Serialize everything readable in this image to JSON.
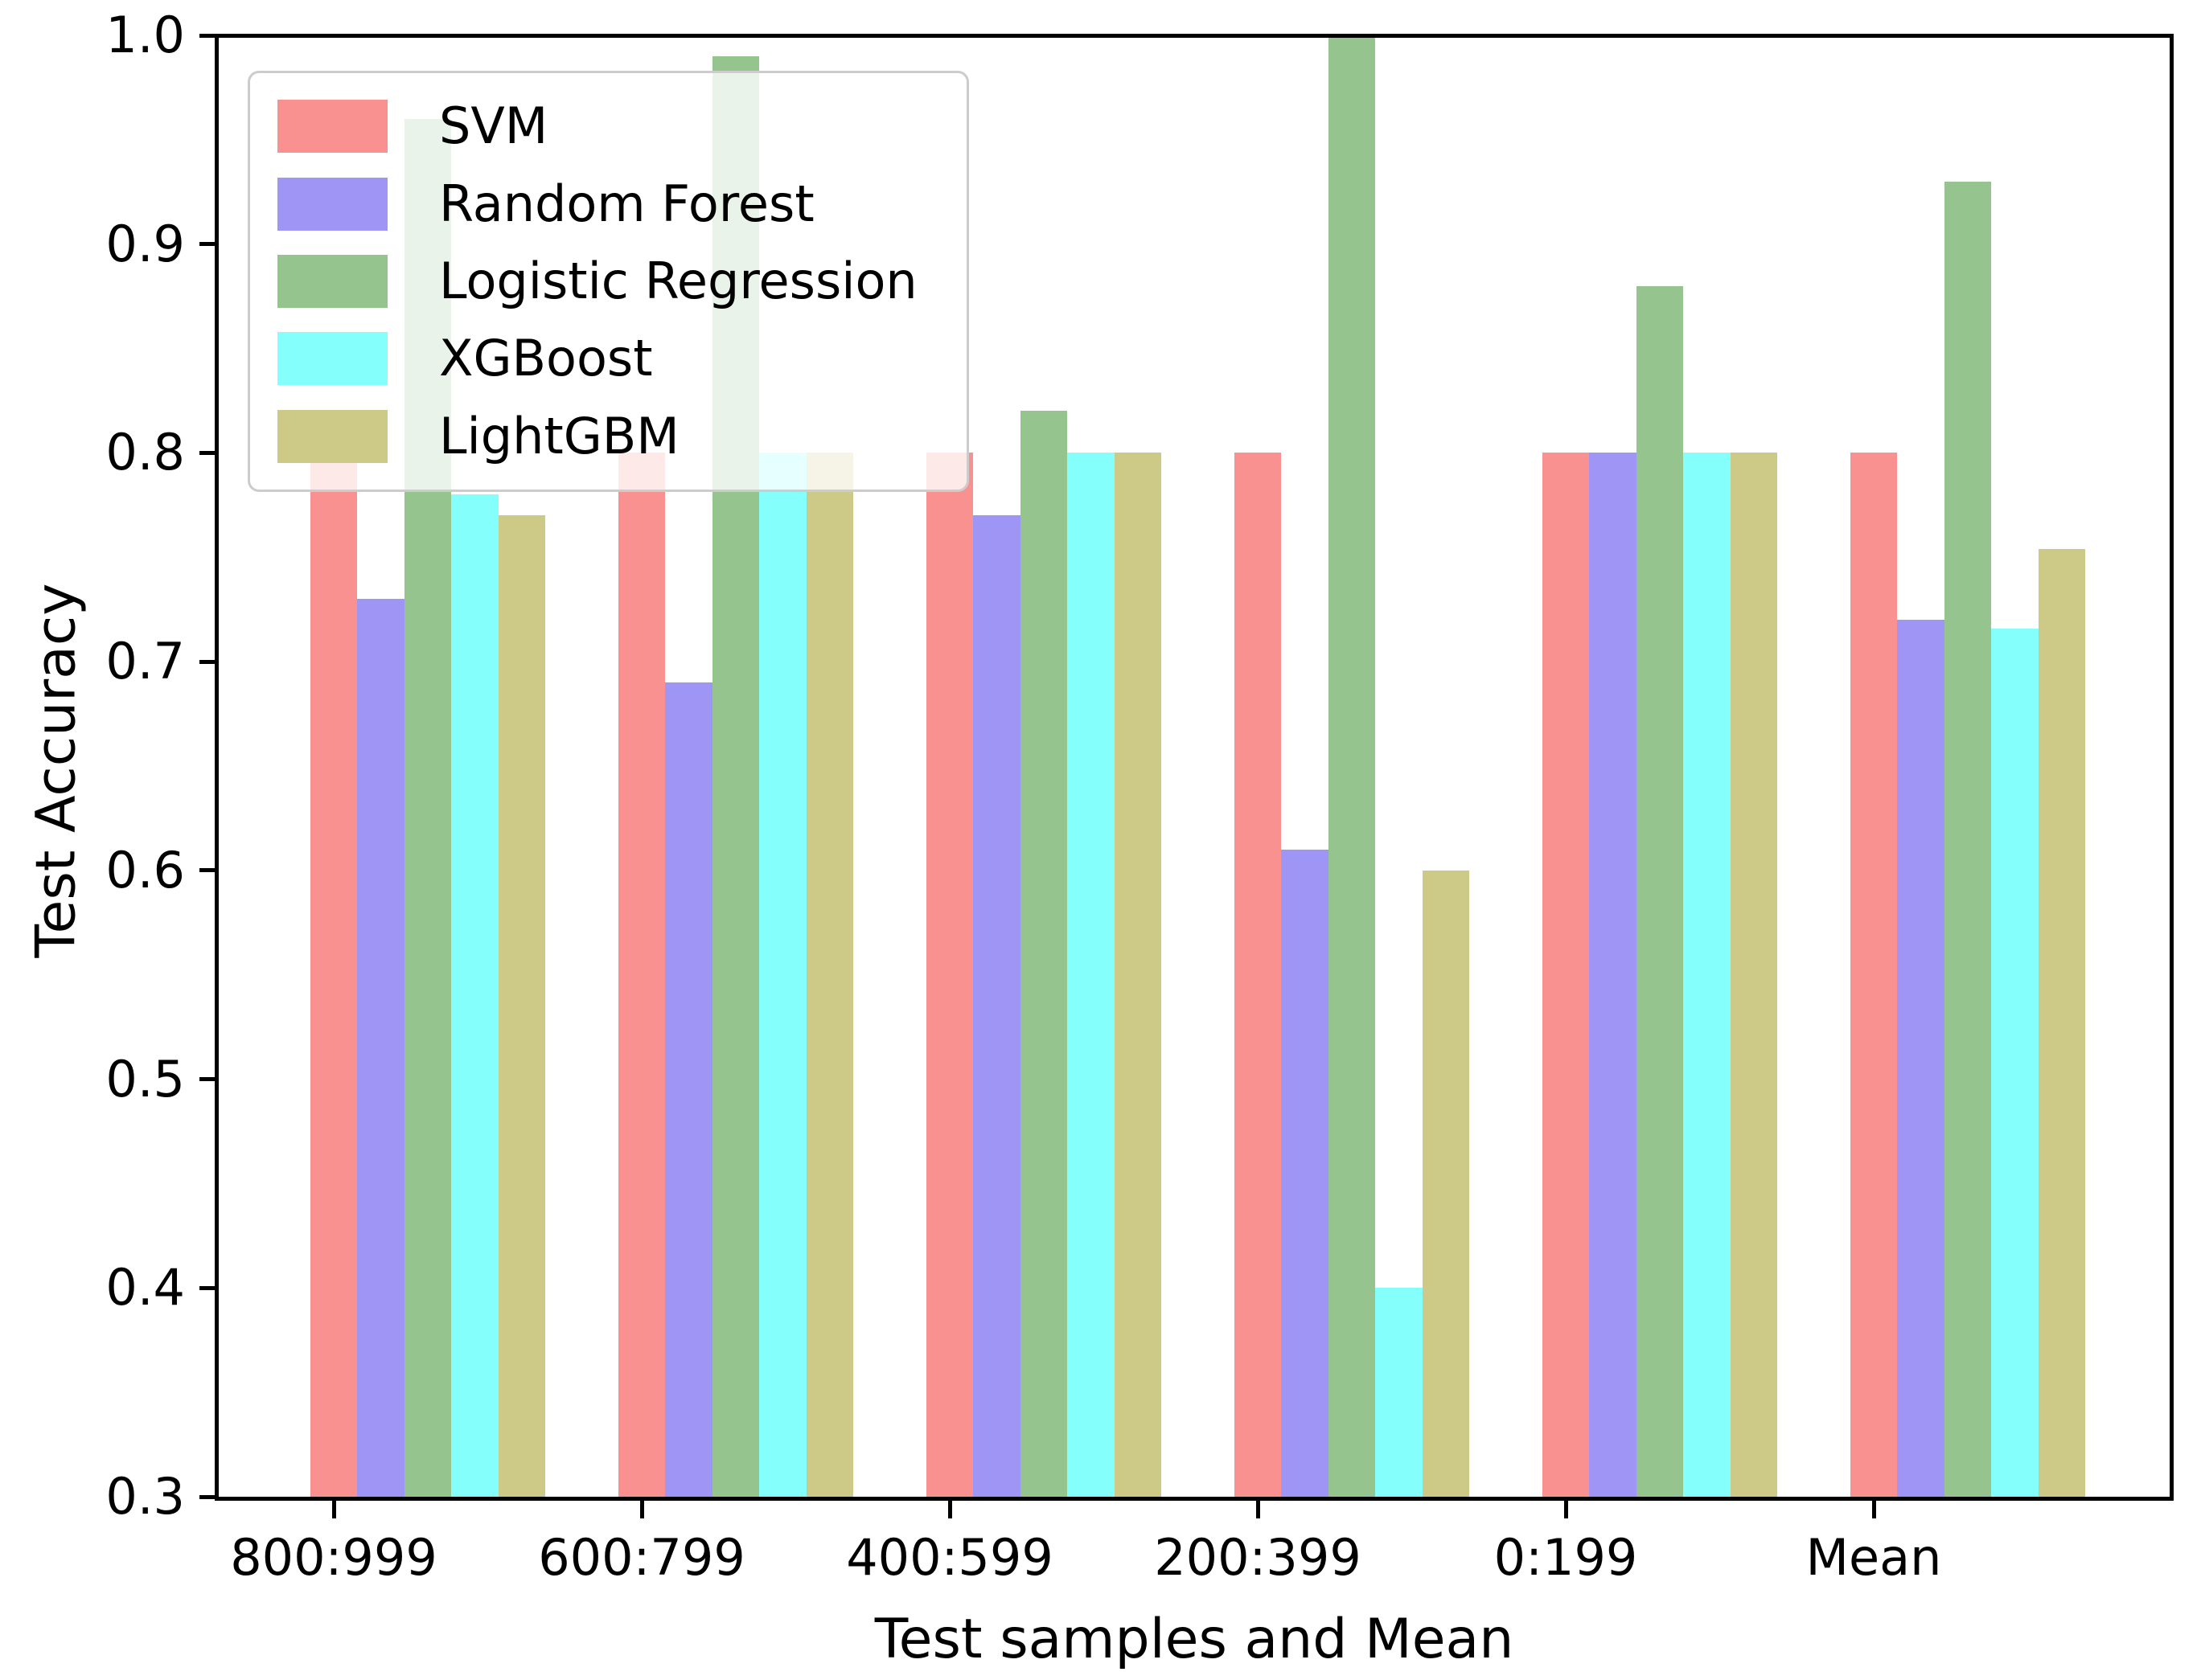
{
  "chart_data": {
    "type": "bar",
    "title": "",
    "xlabel": "Test samples and Mean",
    "ylabel": "Test Accuracy",
    "categories": [
      "800:999",
      "600:799",
      "400:599",
      "200:399",
      "0:199",
      "Mean"
    ],
    "series": [
      {
        "name": "SVM",
        "color": "#FA9191",
        "values": [
          0.8,
          0.8,
          0.8,
          0.8,
          0.8,
          0.8
        ]
      },
      {
        "name": "Random Forest",
        "color": "#9E95F4",
        "values": [
          0.73,
          0.69,
          0.77,
          0.61,
          0.8,
          0.72
        ]
      },
      {
        "name": "Logistic Regression",
        "color": "#95C48F",
        "values": [
          0.96,
          0.99,
          0.82,
          1.0,
          0.88,
          0.93
        ]
      },
      {
        "name": "XGBoost",
        "color": "#84FFFC",
        "values": [
          0.78,
          0.8,
          0.8,
          0.4,
          0.8,
          0.716
        ]
      },
      {
        "name": "LightGBM",
        "color": "#CDC986",
        "values": [
          0.77,
          0.8,
          0.8,
          0.6,
          0.8,
          0.754
        ]
      }
    ],
    "ylim": [
      0.3,
      1.0
    ],
    "yticks": [
      1.0,
      0.9,
      0.8,
      0.7,
      0.6,
      0.5,
      0.4,
      0.3
    ],
    "yticklabels": [
      "1.0",
      "0.9",
      "0.8",
      "0.7",
      "0.6",
      "0.5",
      "0.4",
      "0.3"
    ],
    "grid": false,
    "legend_position": "upper left"
  }
}
